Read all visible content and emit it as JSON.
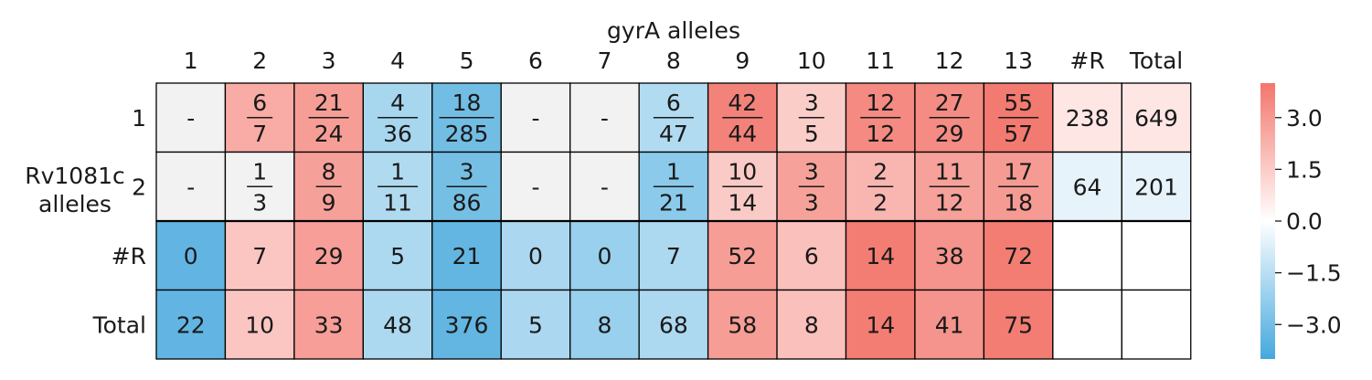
{
  "chart_data": {
    "type": "heatmap",
    "title": "gyrA alleles",
    "ylabel": "Rv1081c\nalleles",
    "column_labels": [
      "1",
      "2",
      "3",
      "4",
      "5",
      "6",
      "7",
      "8",
      "9",
      "10",
      "11",
      "12",
      "13",
      "#R",
      "Total"
    ],
    "row_labels": [
      "1",
      "2",
      "#R",
      "Total"
    ],
    "cells": [
      [
        {
          "text": "-",
          "color": "#f2f2f2"
        },
        {
          "num": "6",
          "den": "7",
          "color": "#f8aca5"
        },
        {
          "num": "21",
          "den": "24",
          "color": "#f69e96"
        },
        {
          "num": "4",
          "den": "36",
          "color": "#a7d6ef"
        },
        {
          "num": "18",
          "den": "285",
          "color": "#72bde4"
        },
        {
          "text": "-",
          "color": "#f2f2f2"
        },
        {
          "text": "-",
          "color": "#f2f2f2"
        },
        {
          "num": "6",
          "den": "47",
          "color": "#b1dbf1"
        },
        {
          "num": "42",
          "den": "44",
          "color": "#f3837a"
        },
        {
          "num": "3",
          "den": "5",
          "color": "#fbcdc9"
        },
        {
          "num": "12",
          "den": "12",
          "color": "#f48a81"
        },
        {
          "num": "27",
          "den": "29",
          "color": "#f48c83"
        },
        {
          "num": "55",
          "den": "57",
          "color": "#f37a70"
        },
        {
          "text": "238",
          "color": "#fde6e4"
        },
        {
          "text": "649",
          "color": "#fde6e4"
        }
      ],
      [
        {
          "text": "-",
          "color": "#f2f2f2"
        },
        {
          "num": "1",
          "den": "3",
          "color": "#f2f2f2"
        },
        {
          "num": "8",
          "den": "9",
          "color": "#f6a09a"
        },
        {
          "num": "1",
          "den": "11",
          "color": "#b0daf0"
        },
        {
          "num": "3",
          "den": "86",
          "color": "#76bfe4"
        },
        {
          "text": "-",
          "color": "#f2f2f2"
        },
        {
          "text": "-",
          "color": "#f2f2f2"
        },
        {
          "num": "1",
          "den": "21",
          "color": "#8bcaea"
        },
        {
          "num": "10",
          "den": "14",
          "color": "#facbc6"
        },
        {
          "num": "3",
          "den": "3",
          "color": "#f6a29b"
        },
        {
          "num": "2",
          "den": "2",
          "color": "#f9b6b0"
        },
        {
          "num": "11",
          "den": "12",
          "color": "#f6a19a"
        },
        {
          "num": "17",
          "den": "18",
          "color": "#f69b94"
        },
        {
          "text": "64",
          "color": "#e6f3fa"
        },
        {
          "text": "201",
          "color": "#e6f3fa"
        }
      ],
      [
        {
          "text": "0",
          "color": "#62b5e2"
        },
        {
          "text": "7",
          "color": "#fbc6c1"
        },
        {
          "text": "29",
          "color": "#f69e97"
        },
        {
          "text": "5",
          "color": "#acd8f0"
        },
        {
          "text": "21",
          "color": "#63b6e2"
        },
        {
          "text": "0",
          "color": "#abd8f0"
        },
        {
          "text": "0",
          "color": "#98d0ed"
        },
        {
          "text": "7",
          "color": "#acd8f0"
        },
        {
          "text": "52",
          "color": "#f69d96"
        },
        {
          "text": "6",
          "color": "#fac0bb"
        },
        {
          "text": "14",
          "color": "#f37d73"
        },
        {
          "text": "38",
          "color": "#f4948c"
        },
        {
          "text": "72",
          "color": "#f37d73"
        },
        {
          "text": "",
          "color": "#ffffff"
        },
        {
          "text": "",
          "color": "#ffffff"
        }
      ],
      [
        {
          "text": "22",
          "color": "#62b5e2"
        },
        {
          "text": "10",
          "color": "#fbc6c1"
        },
        {
          "text": "33",
          "color": "#f69e97"
        },
        {
          "text": "48",
          "color": "#acd8f0"
        },
        {
          "text": "376",
          "color": "#63b6e2"
        },
        {
          "text": "5",
          "color": "#abd8f0"
        },
        {
          "text": "8",
          "color": "#98d0ed"
        },
        {
          "text": "68",
          "color": "#acd8f0"
        },
        {
          "text": "58",
          "color": "#f69d96"
        },
        {
          "text": "8",
          "color": "#fac0bb"
        },
        {
          "text": "14",
          "color": "#f37d73"
        },
        {
          "text": "41",
          "color": "#f4948c"
        },
        {
          "text": "75",
          "color": "#f37d73"
        },
        {
          "text": "",
          "color": "#ffffff"
        },
        {
          "text": "",
          "color": "#ffffff"
        }
      ]
    ],
    "colorbar": {
      "ticks": [
        3.0,
        1.5,
        0.0,
        -1.5,
        -3.0
      ],
      "tick_labels": [
        "3.0",
        "1.5",
        "0.0",
        "−1.5",
        "−3.0"
      ],
      "range": [
        -4.0,
        4.0
      ],
      "colors": {
        "low": "#44a8de",
        "mid": "#ffffff",
        "high": "#f3766c"
      }
    }
  }
}
